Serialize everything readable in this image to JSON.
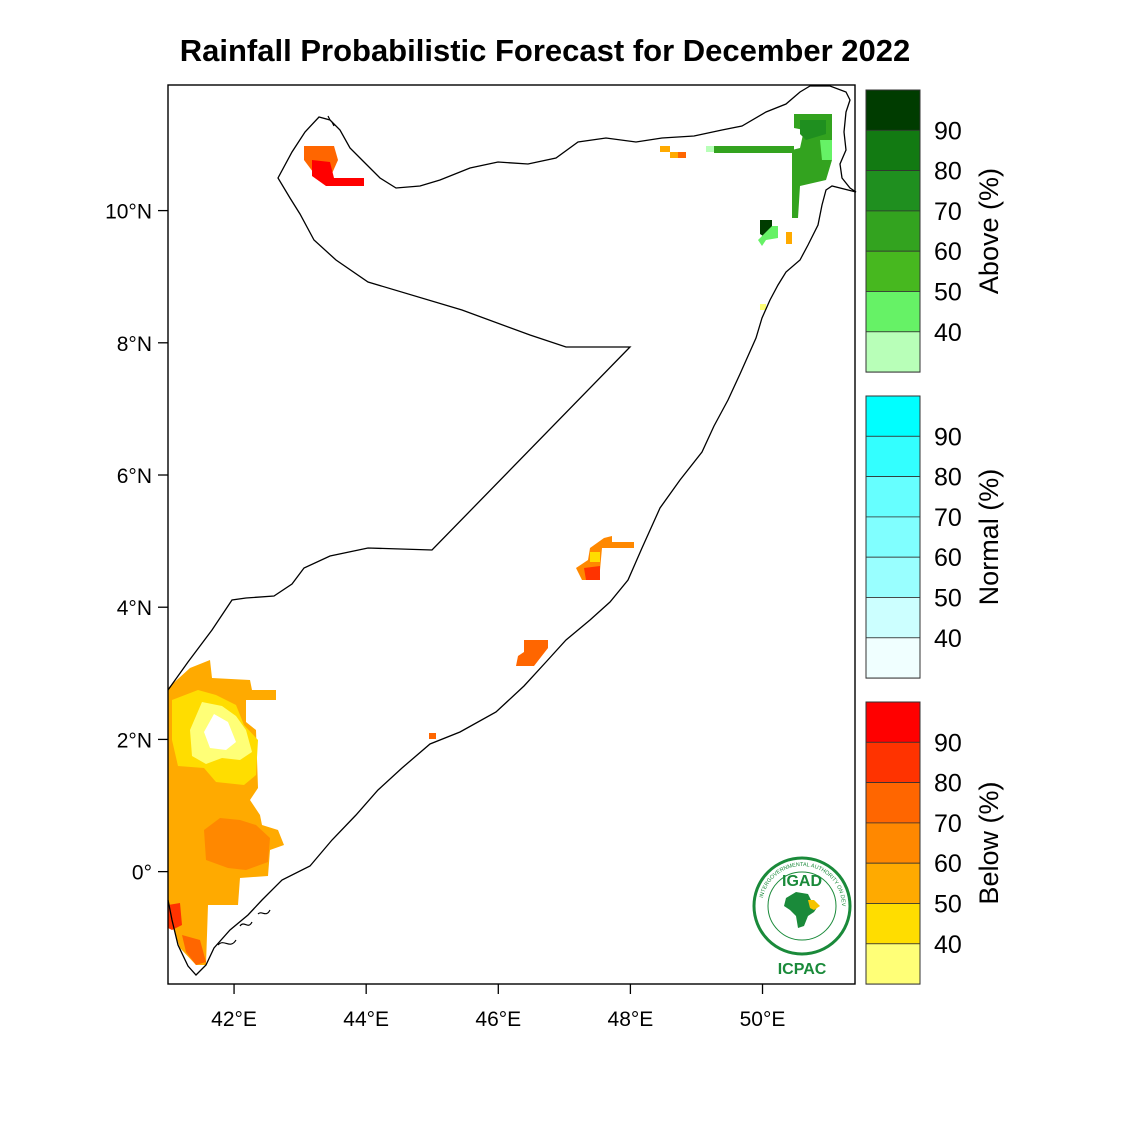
{
  "title": "Rainfall Probabilistic Forecast for December 2022",
  "map": {
    "lon_range": [
      41,
      51.4
    ],
    "lat_range": [
      -1.7,
      11.9
    ],
    "x_ticks": [
      {
        "lon": 42,
        "label": "42°E"
      },
      {
        "lon": 44,
        "label": "44°E"
      },
      {
        "lon": 46,
        "label": "46°E"
      },
      {
        "lon": 48,
        "label": "48°E"
      },
      {
        "lon": 50,
        "label": "50°E"
      }
    ],
    "y_ticks": [
      {
        "lat": 10,
        "label": "10°N"
      },
      {
        "lat": 8,
        "label": "8°N"
      },
      {
        "lat": 6,
        "label": "6°N"
      },
      {
        "lat": 4,
        "label": "4°N"
      },
      {
        "lat": 2,
        "label": "2°N"
      },
      {
        "lat": 0,
        "label": "0°"
      }
    ],
    "border_color": "#000000"
  },
  "colorbars": [
    {
      "name": "Above (%)",
      "ticks": [
        "90",
        "80",
        "70",
        "60",
        "50",
        "40"
      ],
      "colors": [
        "#003c00",
        "#127a12",
        "#1f8f1f",
        "#33a31f",
        "#47b81f",
        "#66f266",
        "#b8ffb8"
      ]
    },
    {
      "name": "Normal (%)",
      "ticks": [
        "90",
        "80",
        "70",
        "60",
        "50",
        "40"
      ],
      "colors": [
        "#00ffff",
        "#33ffff",
        "#66ffff",
        "#80ffff",
        "#99ffff",
        "#ccffff",
        "#f0ffff"
      ]
    },
    {
      "name": "Below (%)",
      "ticks": [
        "90",
        "80",
        "70",
        "60",
        "50",
        "40"
      ],
      "colors": [
        "#ff0000",
        "#ff3300",
        "#ff6600",
        "#ff8800",
        "#ffaa00",
        "#ffdd00",
        "#ffff77"
      ]
    }
  ],
  "logo": {
    "top_text": "IGAD",
    "bottom_text": "ICPAC",
    "ring_text": "INTERGOVERNMENTAL AUTHORITY ON DEVELOPMENT"
  }
}
